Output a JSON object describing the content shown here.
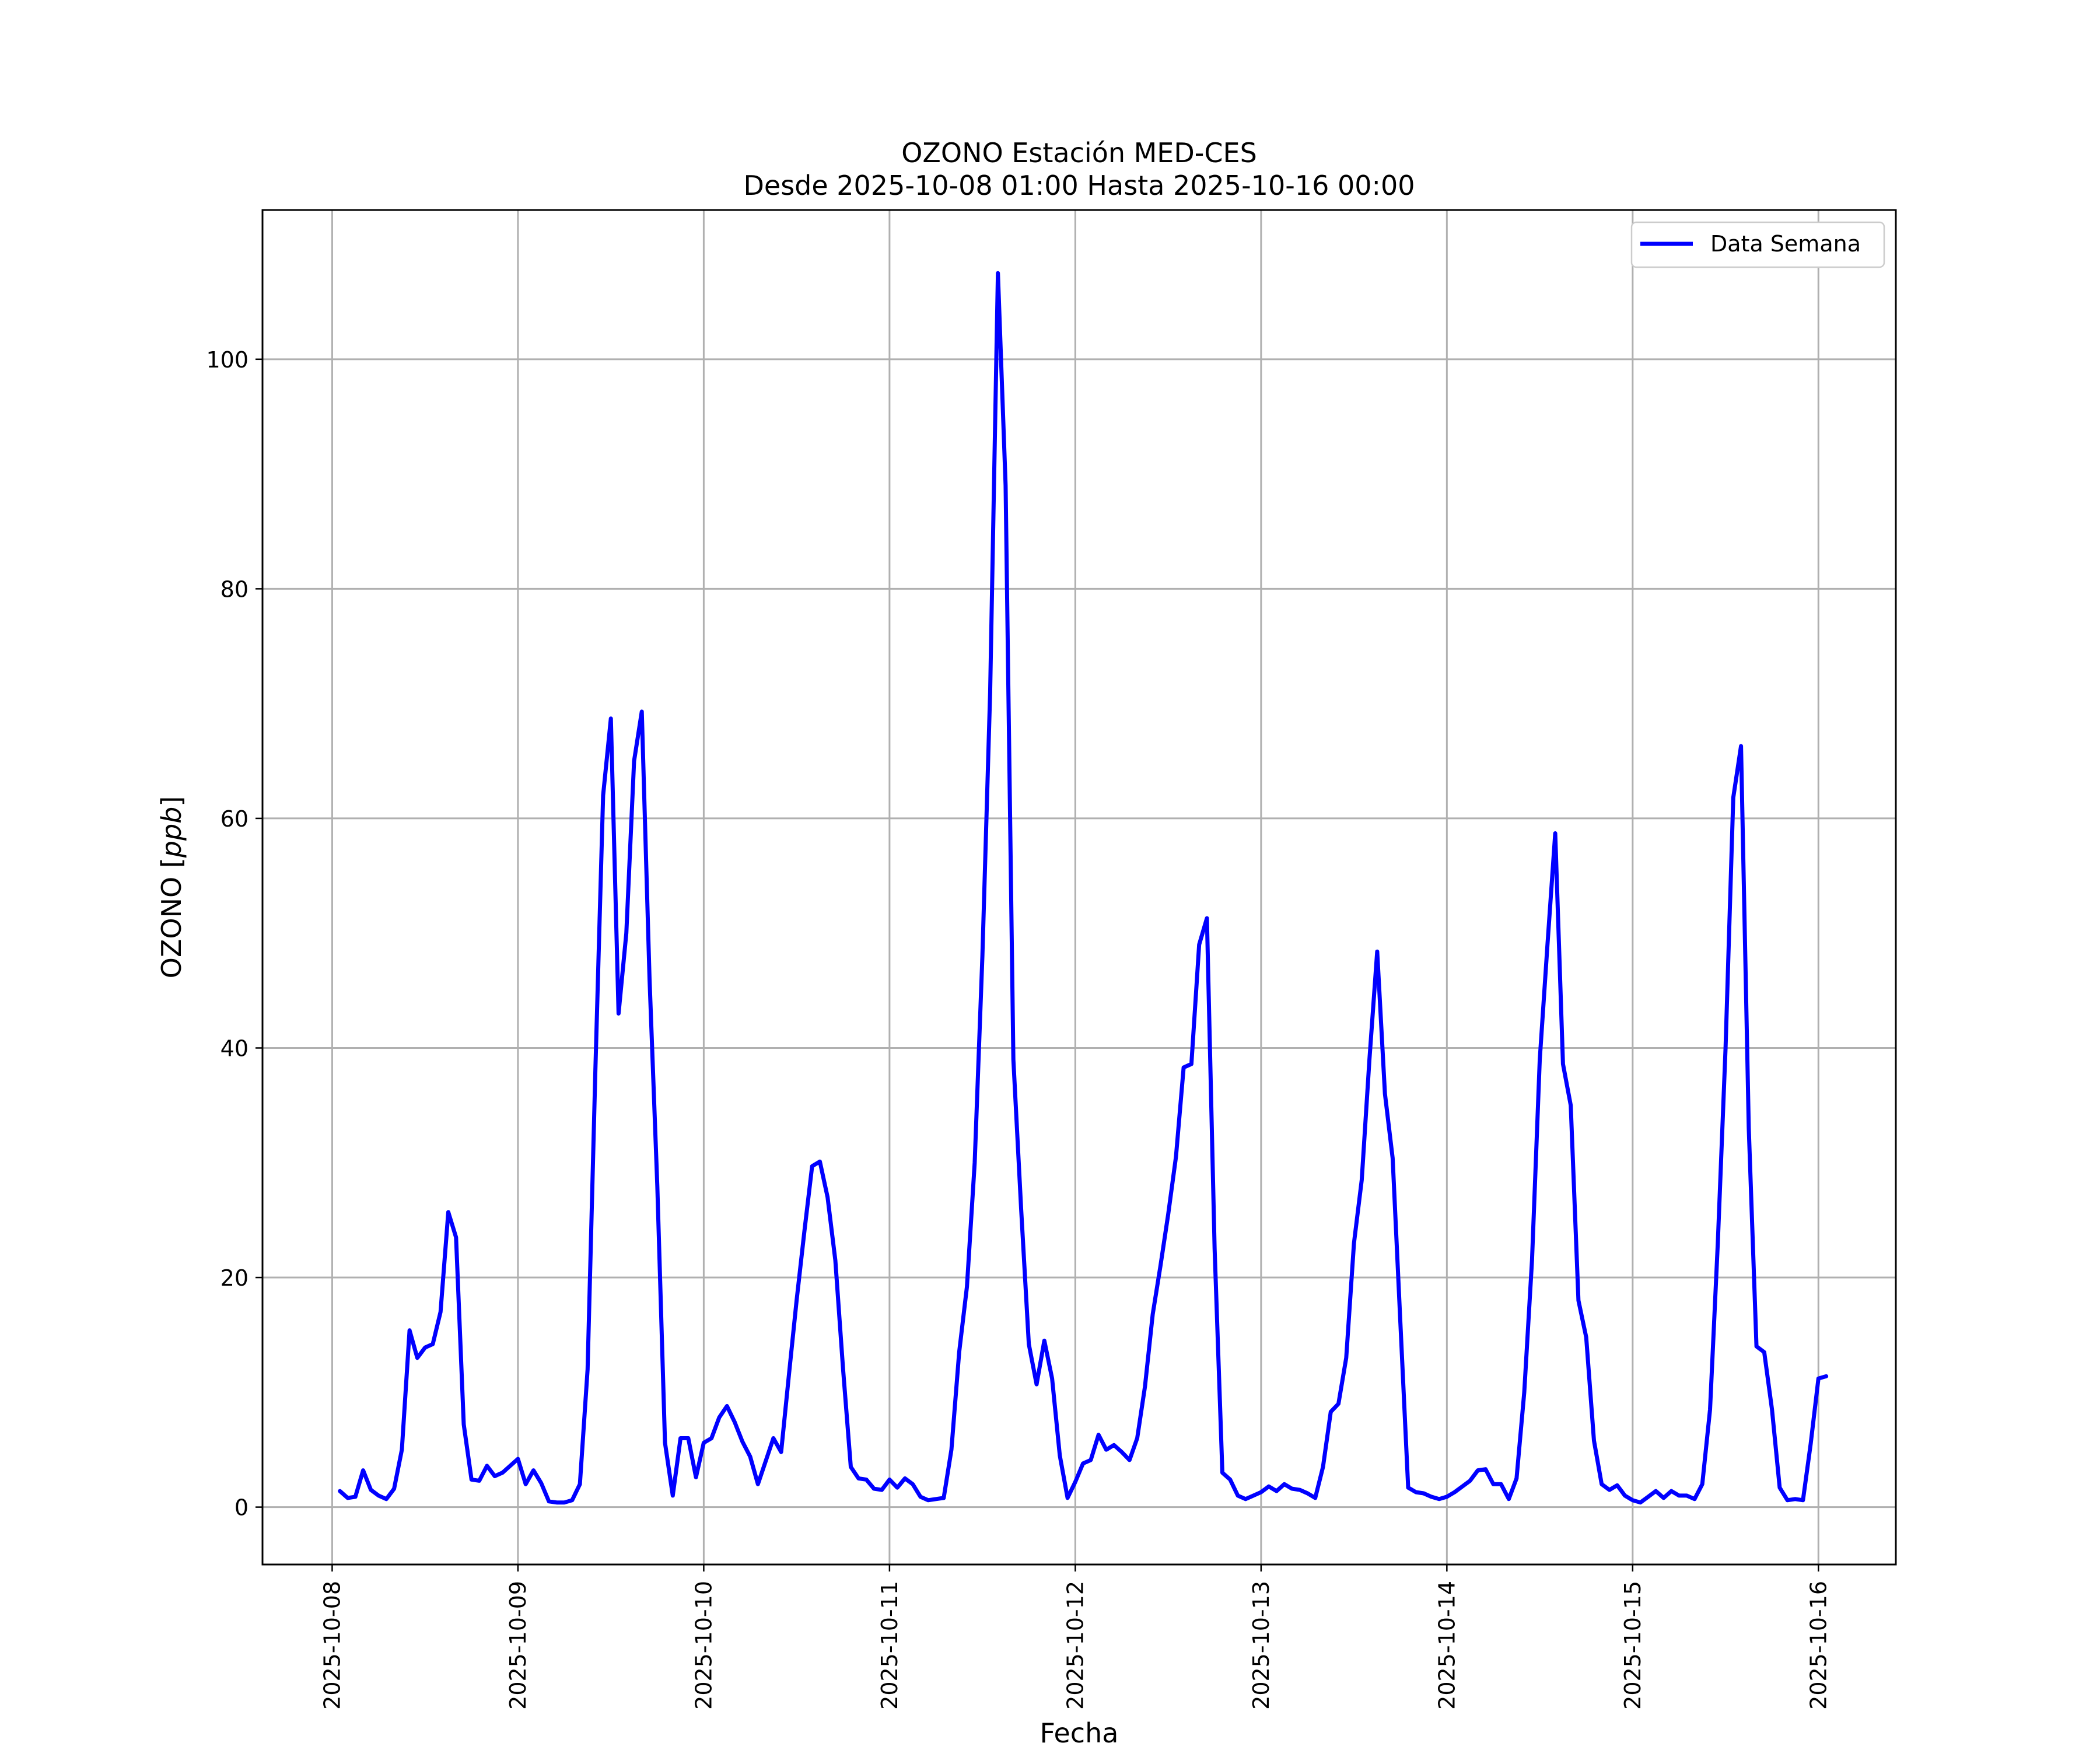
{
  "chart_data": {
    "type": "line",
    "title": "OZONO Estación MED-CES",
    "subtitle": "Desde 2025-10-08 01:00 Hasta 2025-10-16 00:00",
    "xlabel": "Fecha",
    "ylabel": "OZONO [ppb]",
    "ylabel_main": "OZONO [",
    "ylabel_unit": "ppb",
    "ylabel_close": "]",
    "x_start": "2025-10-08 01:00",
    "x_step_hours": 1,
    "xlim": [
      "2025-10-07 15:00",
      "2025-10-16 10:00"
    ],
    "ylim": [
      -5,
      113
    ],
    "x_ticks": [
      "2025-10-08",
      "2025-10-09",
      "2025-10-10",
      "2025-10-11",
      "2025-10-12",
      "2025-10-13",
      "2025-10-14",
      "2025-10-15",
      "2025-10-16"
    ],
    "y_ticks": [
      0,
      20,
      40,
      60,
      80,
      100
    ],
    "grid": true,
    "legend_position": "top-right",
    "series": [
      {
        "name": "Data Semana",
        "color": "#0000ff",
        "values": [
          1.4,
          0.8,
          0.9,
          3.2,
          1.5,
          1.0,
          0.7,
          1.6,
          5.0,
          15.4,
          13.0,
          13.9,
          14.2,
          17.0,
          25.7,
          23.5,
          7.2,
          2.4,
          2.3,
          3.6,
          2.7,
          3.0,
          3.6,
          4.2,
          2.0,
          3.2,
          2.1,
          0.5,
          0.4,
          0.4,
          0.6,
          2.0,
          12.0,
          38.0,
          62.0,
          68.7,
          43.0,
          50.0,
          65.0,
          69.3,
          46.0,
          28.0,
          5.6,
          1.0,
          6.0,
          6.0,
          2.6,
          5.6,
          6.0,
          7.8,
          8.8,
          7.4,
          5.7,
          4.4,
          2.0,
          4.0,
          6.0,
          4.8,
          11.5,
          18.0,
          24.0,
          29.7,
          30.1,
          27.0,
          21.5,
          12.0,
          3.5,
          2.5,
          2.4,
          1.6,
          1.5,
          2.4,
          1.7,
          2.5,
          2.0,
          0.9,
          0.6,
          0.7,
          0.8,
          5.0,
          13.5,
          19.2,
          30.0,
          48.0,
          71.0,
          107.5,
          89.0,
          39.0,
          26.0,
          14.2,
          10.7,
          14.5,
          11.2,
          4.5,
          0.8,
          2.2,
          3.8,
          4.1,
          6.3,
          5.0,
          5.4,
          4.8,
          4.1,
          6.0,
          10.5,
          16.8,
          21.0,
          25.5,
          30.5,
          38.3,
          38.6,
          49.0,
          51.3,
          22.5,
          3.0,
          2.4,
          1.0,
          0.7,
          1.0,
          1.3,
          1.8,
          1.4,
          2.0,
          1.6,
          1.5,
          1.2,
          0.8,
          3.5,
          8.3,
          9.0,
          13.0,
          23.0,
          28.5,
          39.0,
          48.4,
          36.0,
          30.4,
          16.0,
          1.7,
          1.3,
          1.2,
          0.9,
          0.7,
          0.9,
          1.3,
          1.8,
          2.3,
          3.2,
          3.3,
          2.0,
          2.0,
          0.7,
          2.5,
          10.0,
          21.5,
          39.0,
          49.0,
          58.7,
          38.6,
          35.0,
          18.0,
          14.8,
          5.8,
          2.0,
          1.5,
          1.9,
          1.0,
          0.6,
          0.4,
          0.9,
          1.4,
          0.8,
          1.4,
          1.0,
          1.0,
          0.7,
          2.0,
          8.5,
          23.0,
          40.0,
          61.8,
          66.3,
          33.0,
          14.0,
          13.5,
          8.5,
          1.7,
          0.6,
          0.7,
          0.6,
          5.5,
          11.2,
          11.4
        ]
      }
    ]
  }
}
